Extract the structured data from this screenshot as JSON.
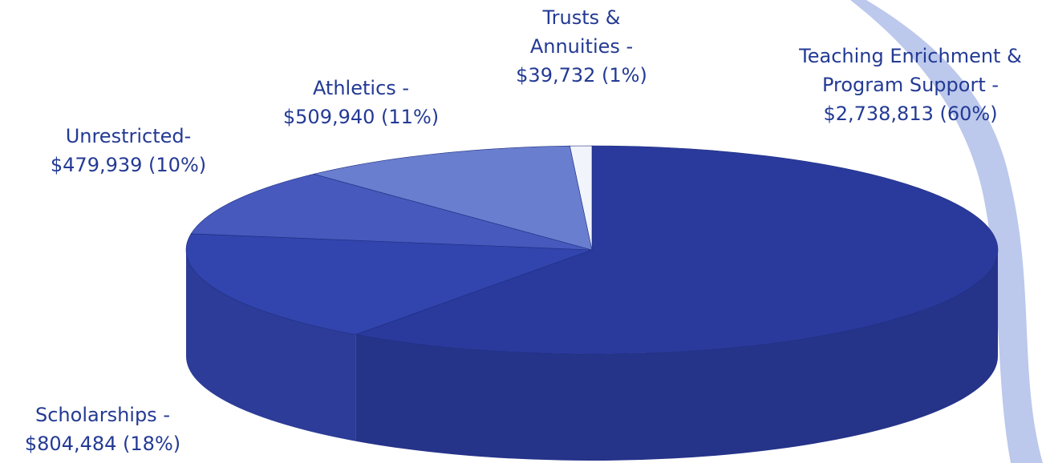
{
  "chart_data": {
    "type": "pie",
    "categories": [
      "Teaching Enrichment & Program Support -",
      "Scholarships -",
      "Unrestricted-",
      "Athletics -",
      "Trusts & Annuities -"
    ],
    "values": [
      2738813,
      804484,
      479939,
      509940,
      39732
    ],
    "value_labels": [
      "$2,738,813 (60%)",
      "$804,484 (18%)",
      "$479,939 (10%)",
      "$509,940 (11%)",
      "$39,732 (1%)"
    ],
    "colors": [
      "#2a3a9c",
      "#3244ad",
      "#4759bd",
      "#6a7ecf",
      "#f2f4fc"
    ]
  }
}
